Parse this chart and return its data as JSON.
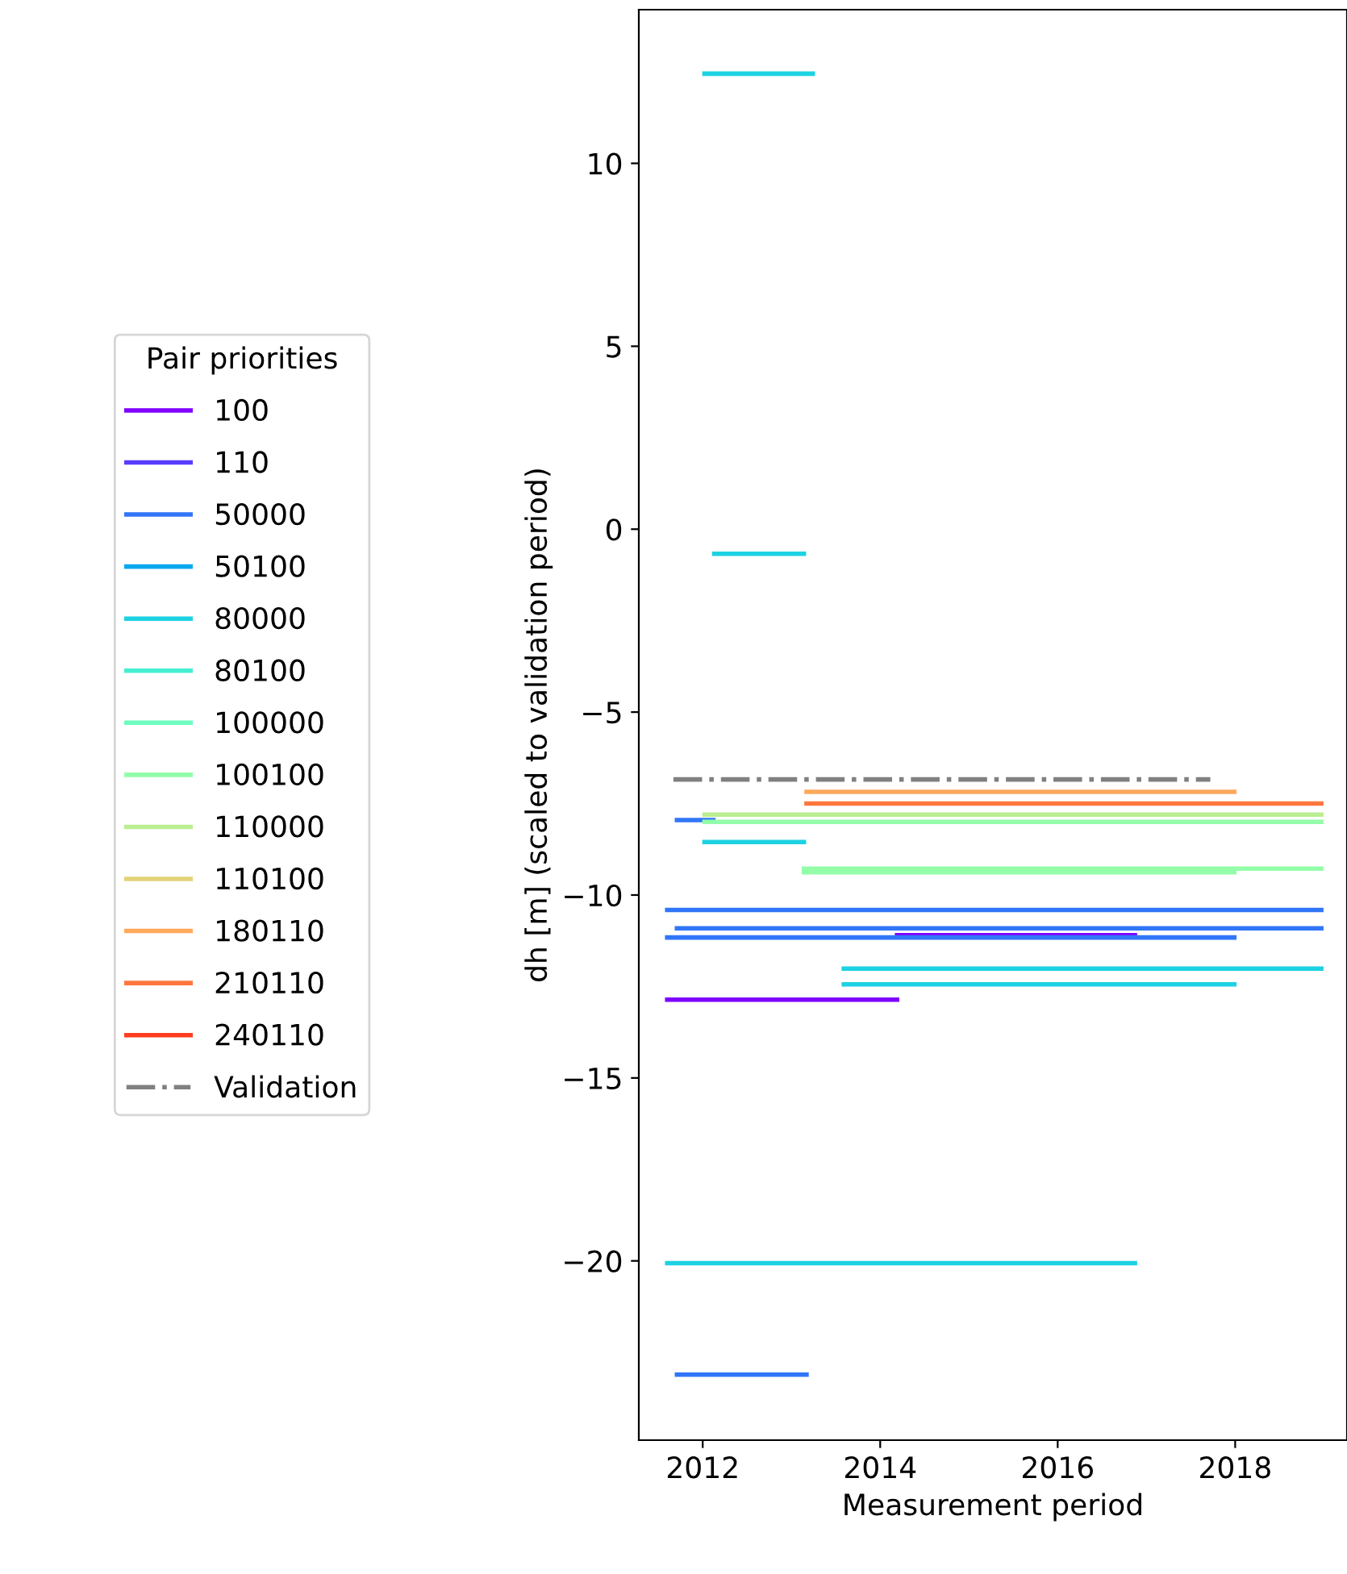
{
  "chart_data": {
    "type": "line",
    "xlabel": "Measurement period",
    "ylabel": "dh [m] (scaled to validation period)",
    "legend_title": "Pair priorities",
    "legend": "left",
    "grid": false,
    "marker": "none",
    "xlim": [
      2011.28,
      2019.26
    ],
    "xticks": [
      2012,
      2014,
      2016,
      2018
    ],
    "ylim": [
      -24.9,
      14.2
    ],
    "yticks": [
      10,
      5,
      0,
      -5,
      -10,
      -15,
      -20
    ],
    "series": [
      {
        "name": "100",
        "color": "#8000ff",
        "x": [
          2014.19,
          2016.87,
          null,
          2011.6,
          2014.19
        ],
        "values": [
          -11.1,
          -11.1,
          null,
          -12.86,
          -12.86
        ]
      },
      {
        "name": "110",
        "color": "#583dfd"
      },
      {
        "name": "50000",
        "color": "#3176f8",
        "x": [
          2011.71,
          2012.12,
          null,
          2011.6,
          2018.97,
          null,
          2011.71,
          2018.97,
          null,
          2011.6,
          2017.99,
          null,
          2011.71,
          2013.17
        ],
        "values": [
          -7.95,
          -7.95,
          null,
          -10.41,
          -10.41,
          null,
          -10.91,
          -10.91,
          null,
          -11.16,
          -11.16,
          null,
          -23.11,
          -23.11
        ]
      },
      {
        "name": "50100",
        "color": "#0aa9ee"
      },
      {
        "name": "80000",
        "color": "#1dd2e2",
        "x": [
          2012.02,
          2013.24,
          null,
          2012.13,
          2013.14,
          null,
          2012.02,
          2013.14,
          null,
          2013.59,
          2018.97,
          null,
          2013.59,
          2017.99,
          null,
          2011.6,
          2016.87
        ],
        "values": [
          12.45,
          12.45,
          null,
          -0.67,
          -0.67,
          null,
          -8.55,
          -8.55,
          null,
          -12.01,
          -12.01,
          null,
          -12.44,
          -12.44,
          null,
          -20.06,
          -20.06
        ]
      },
      {
        "name": "80100",
        "color": "#45eed1"
      },
      {
        "name": "100000",
        "color": "#6cfdbf"
      },
      {
        "name": "100100",
        "color": "#93fda9",
        "x": [
          2012.02,
          2018.97,
          null,
          2013.14,
          2018.97,
          null,
          2013.14,
          2017.99
        ],
        "values": [
          -8.0,
          -8.0,
          null,
          -9.28,
          -9.28,
          null,
          -9.38,
          -9.38
        ]
      },
      {
        "name": "110000",
        "color": "#baee91",
        "x": [
          2012.02,
          2018.97
        ],
        "values": [
          -7.8,
          -7.8
        ]
      },
      {
        "name": "110100",
        "color": "#e2d277"
      },
      {
        "name": "180110",
        "color": "#ffa95b",
        "x": [
          2013.17,
          2017.99
        ],
        "values": [
          -7.18,
          -7.18
        ]
      },
      {
        "name": "210110",
        "color": "#ff763d",
        "x": [
          2013.17,
          2018.97
        ],
        "values": [
          -7.5,
          -7.5
        ]
      },
      {
        "name": "240110",
        "color": "#ff3d1f"
      },
      {
        "name": "Validation",
        "color": "#808080",
        "line_style": "dashdot",
        "x": [
          2011.67,
          2017.72
        ],
        "values": [
          -6.84,
          -6.84
        ]
      }
    ]
  }
}
